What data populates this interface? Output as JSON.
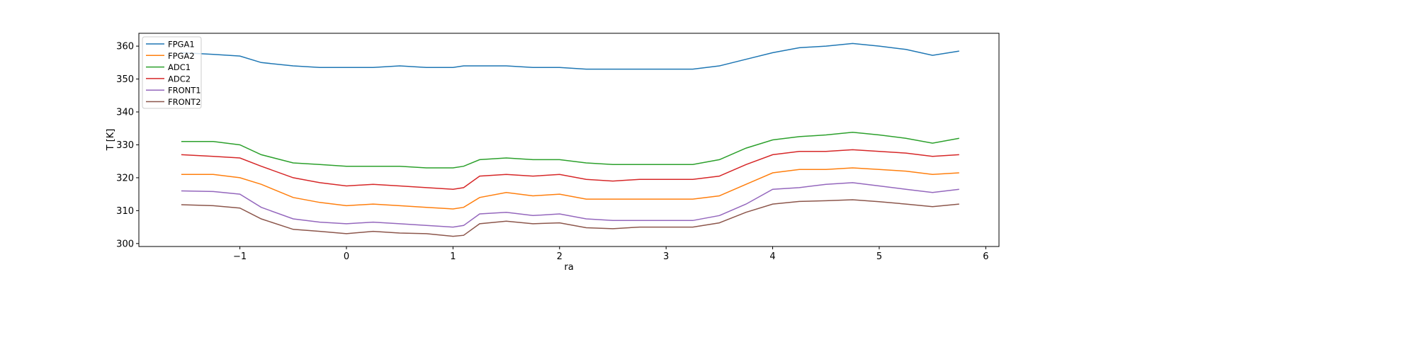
{
  "chart_data": {
    "type": "line",
    "title": "",
    "xlabel": "ra",
    "ylabel": "T [K]",
    "xlim": [
      -1.948,
      6.124
    ],
    "ylim": [
      299.1,
      363.9
    ],
    "xticks": [
      -1,
      0,
      1,
      2,
      3,
      4,
      5,
      6
    ],
    "xtick_labels": [
      "−1",
      "0",
      "1",
      "2",
      "3",
      "4",
      "5",
      "6"
    ],
    "yticks": [
      300,
      310,
      320,
      330,
      340,
      350,
      360
    ],
    "ytick_labels": [
      "300",
      "310",
      "320",
      "330",
      "340",
      "350",
      "360"
    ],
    "grid": false,
    "legend": "top-left",
    "x": [
      -1.55,
      -1.25,
      -1,
      -0.8,
      -0.5,
      -0.25,
      0,
      0.25,
      0.5,
      0.75,
      1,
      1.1,
      1.25,
      1.5,
      1.75,
      2,
      2.25,
      2.5,
      2.75,
      3,
      3.25,
      3.5,
      3.75,
      4,
      4.25,
      4.5,
      4.75,
      5,
      5.25,
      5.5,
      5.75
    ],
    "series": [
      {
        "name": "FPGA1",
        "color": "#1f77b4",
        "values": [
          358,
          357.5,
          357,
          355,
          354,
          353.5,
          353.5,
          353.5,
          354,
          353.5,
          353.5,
          354,
          354,
          354,
          353.5,
          353.5,
          353,
          353,
          353,
          353,
          353,
          354,
          356,
          358,
          359.5,
          360,
          360.8,
          360,
          359,
          357.2,
          358.5
        ]
      },
      {
        "name": "FPGA2",
        "color": "#ff7f0e",
        "values": [
          321,
          321,
          320,
          318,
          314,
          312.5,
          311.5,
          312,
          311.5,
          311,
          310.5,
          311,
          314,
          315.5,
          314.5,
          315,
          313.5,
          313.5,
          313.5,
          313.5,
          313.5,
          314.5,
          318,
          321.5,
          322.5,
          322.5,
          323,
          322.5,
          322,
          321,
          321.5
        ]
      },
      {
        "name": "ADC1",
        "color": "#2ca02c",
        "values": [
          331,
          331,
          330,
          327,
          324.5,
          324,
          323.5,
          323.5,
          323.5,
          323,
          323,
          323.5,
          325.5,
          326,
          325.5,
          325.5,
          324.5,
          324,
          324,
          324,
          324,
          325.5,
          329,
          331.5,
          332.5,
          333,
          333.8,
          333,
          332,
          330.5,
          332
        ]
      },
      {
        "name": "ADC2",
        "color": "#d62728",
        "values": [
          327,
          326.5,
          326,
          323.5,
          320,
          318.5,
          317.5,
          318,
          317.5,
          317,
          316.5,
          317,
          320.5,
          321,
          320.5,
          321,
          319.5,
          319,
          319.5,
          319.5,
          319.5,
          320.5,
          324,
          327,
          328,
          328,
          328.5,
          328,
          327.5,
          326.5,
          327
        ]
      },
      {
        "name": "FRONT1",
        "color": "#9467bd",
        "values": [
          316,
          315.8,
          315,
          311,
          307.5,
          306.5,
          306,
          306.5,
          306,
          305.5,
          305,
          305.5,
          309,
          309.5,
          308.5,
          309,
          307.5,
          307,
          307,
          307,
          307,
          308.5,
          312,
          316.5,
          317,
          318,
          318.5,
          317.5,
          316.5,
          315.5,
          316.5
        ]
      },
      {
        "name": "FRONT2",
        "color": "#8c564b",
        "values": [
          311.8,
          311.5,
          310.8,
          307.5,
          304.3,
          303.7,
          303,
          303.7,
          303.2,
          303,
          302.2,
          302.5,
          306,
          306.8,
          306,
          306.3,
          304.8,
          304.5,
          305,
          305,
          305,
          306.3,
          309.5,
          312,
          312.8,
          313,
          313.3,
          312.7,
          312,
          311.2,
          312
        ]
      }
    ]
  }
}
